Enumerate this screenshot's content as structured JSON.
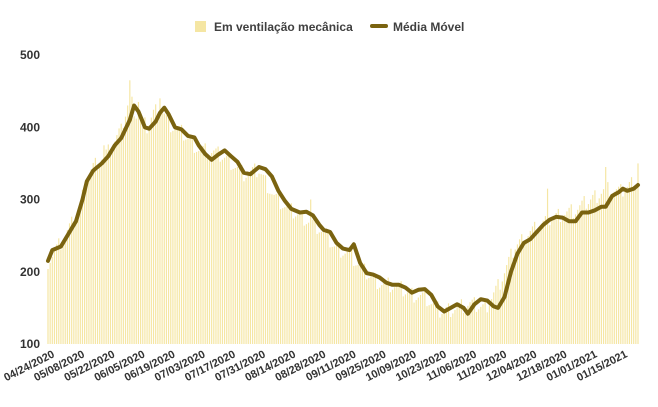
{
  "chart_data": {
    "type": "bar+line",
    "legend_position": "top-center",
    "grid": false,
    "ylim": [
      100,
      500
    ],
    "yticks": [
      "100",
      "200",
      "300",
      "400",
      "500"
    ],
    "xticks": [
      "04/24/2020",
      "05/08/2020",
      "05/22/2020",
      "06/05/2020",
      "06/19/2020",
      "07/03/2020",
      "07/17/2020",
      "07/31/2020",
      "08/14/2020",
      "08/28/2020",
      "09/11/2020",
      "09/25/2020",
      "10/09/2020",
      "10/23/2020",
      "11/06/2020",
      "11/20/2020",
      "12/04/2020",
      "12/18/2020",
      "01/01/2021",
      "01/15/2021"
    ],
    "x_start": "04/24/2020",
    "x_end": "01/23/2021",
    "bar_series": {
      "name": "Em ventilação mecânica",
      "color": "#F5E6A3",
      "anchors": [
        [
          "04/24/2020",
          215
        ],
        [
          "05/01/2020",
          245
        ],
        [
          "05/08/2020",
          280
        ],
        [
          "05/12/2020",
          330
        ],
        [
          "05/15/2020",
          345
        ],
        [
          "05/22/2020",
          365
        ],
        [
          "05/28/2020",
          395
        ],
        [
          "06/01/2020",
          440
        ],
        [
          "06/05/2020",
          410
        ],
        [
          "06/09/2020",
          400
        ],
        [
          "06/12/2020",
          420
        ],
        [
          "06/15/2020",
          430
        ],
        [
          "06/19/2020",
          405
        ],
        [
          "06/26/2020",
          390
        ],
        [
          "07/03/2020",
          370
        ],
        [
          "07/10/2020",
          365
        ],
        [
          "07/17/2020",
          355
        ],
        [
          "07/24/2020",
          335
        ],
        [
          "07/31/2020",
          340
        ],
        [
          "08/07/2020",
          305
        ],
        [
          "08/14/2020",
          285
        ],
        [
          "08/21/2020",
          275
        ],
        [
          "08/28/2020",
          260
        ],
        [
          "09/04/2020",
          235
        ],
        [
          "09/11/2020",
          225
        ],
        [
          "09/18/2020",
          200
        ],
        [
          "09/25/2020",
          185
        ],
        [
          "10/02/2020",
          180
        ],
        [
          "10/09/2020",
          170
        ],
        [
          "10/16/2020",
          165
        ],
        [
          "10/23/2020",
          145
        ],
        [
          "10/30/2020",
          150
        ],
        [
          "11/06/2020",
          155
        ],
        [
          "11/13/2020",
          150
        ],
        [
          "11/20/2020",
          185
        ],
        [
          "11/27/2020",
          235
        ],
        [
          "12/04/2020",
          255
        ],
        [
          "12/11/2020",
          270
        ],
        [
          "12/18/2020",
          280
        ],
        [
          "12/25/2020",
          285
        ],
        [
          "01/01/2021",
          300
        ],
        [
          "01/08/2021",
          315
        ],
        [
          "01/15/2021",
          310
        ],
        [
          "01/23/2021",
          330
        ]
      ],
      "spikes": [
        [
          "05/20/2020",
          375
        ],
        [
          "05/28/2020",
          405
        ],
        [
          "06/01/2020",
          465
        ],
        [
          "06/05/2020",
          435
        ],
        [
          "06/15/2020",
          440
        ],
        [
          "08/24/2020",
          300
        ],
        [
          "12/12/2020",
          315
        ],
        [
          "01/08/2021",
          345
        ],
        [
          "01/23/2021",
          350
        ]
      ]
    },
    "line_series": {
      "name": "Média Móvel",
      "color": "#7A6310",
      "points": [
        [
          "04/24/2020",
          215
        ],
        [
          "04/26/2020",
          230
        ],
        [
          "04/30/2020",
          235
        ],
        [
          "05/03/2020",
          250
        ],
        [
          "05/07/2020",
          270
        ],
        [
          "05/10/2020",
          300
        ],
        [
          "05/12/2020",
          325
        ],
        [
          "05/15/2020",
          340
        ],
        [
          "05/19/2020",
          350
        ],
        [
          "05/22/2020",
          360
        ],
        [
          "05/25/2020",
          375
        ],
        [
          "05/28/2020",
          385
        ],
        [
          "06/01/2020",
          410
        ],
        [
          "06/03/2020",
          430
        ],
        [
          "06/05/2020",
          422
        ],
        [
          "06/08/2020",
          400
        ],
        [
          "06/10/2020",
          398
        ],
        [
          "06/13/2020",
          408
        ],
        [
          "06/15/2020",
          420
        ],
        [
          "06/17/2020",
          427
        ],
        [
          "06/19/2020",
          418
        ],
        [
          "06/22/2020",
          400
        ],
        [
          "06/25/2020",
          397
        ],
        [
          "06/28/2020",
          388
        ],
        [
          "07/01/2020",
          386
        ],
        [
          "07/03/2020",
          375
        ],
        [
          "07/06/2020",
          363
        ],
        [
          "07/09/2020",
          355
        ],
        [
          "07/12/2020",
          362
        ],
        [
          "07/15/2020",
          368
        ],
        [
          "07/18/2020",
          360
        ],
        [
          "07/21/2020",
          352
        ],
        [
          "07/24/2020",
          337
        ],
        [
          "07/27/2020",
          335
        ],
        [
          "07/31/2020",
          345
        ],
        [
          "08/03/2020",
          342
        ],
        [
          "08/06/2020",
          332
        ],
        [
          "08/09/2020",
          312
        ],
        [
          "08/12/2020",
          298
        ],
        [
          "08/15/2020",
          287
        ],
        [
          "08/19/2020",
          282
        ],
        [
          "08/22/2020",
          283
        ],
        [
          "08/25/2020",
          278
        ],
        [
          "08/28/2020",
          265
        ],
        [
          "08/30/2020",
          258
        ],
        [
          "09/02/2020",
          255
        ],
        [
          "09/05/2020",
          240
        ],
        [
          "09/08/2020",
          232
        ],
        [
          "09/11/2020",
          230
        ],
        [
          "09/13/2020",
          238
        ],
        [
          "09/16/2020",
          212
        ],
        [
          "09/19/2020",
          198
        ],
        [
          "09/22/2020",
          196
        ],
        [
          "09/25/2020",
          192
        ],
        [
          "09/28/2020",
          185
        ],
        [
          "10/01/2020",
          182
        ],
        [
          "10/04/2020",
          182
        ],
        [
          "10/07/2020",
          178
        ],
        [
          "10/10/2020",
          171
        ],
        [
          "10/13/2020",
          175
        ],
        [
          "10/16/2020",
          176
        ],
        [
          "10/19/2020",
          168
        ],
        [
          "10/22/2020",
          152
        ],
        [
          "10/25/2020",
          145
        ],
        [
          "10/28/2020",
          150
        ],
        [
          "10/31/2020",
          155
        ],
        [
          "11/03/2020",
          150
        ],
        [
          "11/05/2020",
          142
        ],
        [
          "11/08/2020",
          155
        ],
        [
          "11/11/2020",
          162
        ],
        [
          "11/14/2020",
          160
        ],
        [
          "11/17/2020",
          152
        ],
        [
          "11/19/2020",
          150
        ],
        [
          "11/22/2020",
          165
        ],
        [
          "11/25/2020",
          200
        ],
        [
          "11/28/2020",
          225
        ],
        [
          "12/01/2020",
          240
        ],
        [
          "12/04/2020",
          245
        ],
        [
          "12/07/2020",
          255
        ],
        [
          "12/10/2020",
          265
        ],
        [
          "12/13/2020",
          272
        ],
        [
          "12/16/2020",
          276
        ],
        [
          "12/19/2020",
          275
        ],
        [
          "12/22/2020",
          270
        ],
        [
          "12/25/2020",
          270
        ],
        [
          "12/28/2020",
          282
        ],
        [
          "12/31/2020",
          282
        ],
        [
          "01/03/2021",
          285
        ],
        [
          "01/06/2021",
          290
        ],
        [
          "01/08/2021",
          290
        ],
        [
          "01/11/2021",
          305
        ],
        [
          "01/14/2021",
          310
        ],
        [
          "01/16/2021",
          315
        ],
        [
          "01/18/2021",
          312
        ],
        [
          "01/21/2021",
          315
        ],
        [
          "01/23/2021",
          320
        ]
      ]
    }
  }
}
